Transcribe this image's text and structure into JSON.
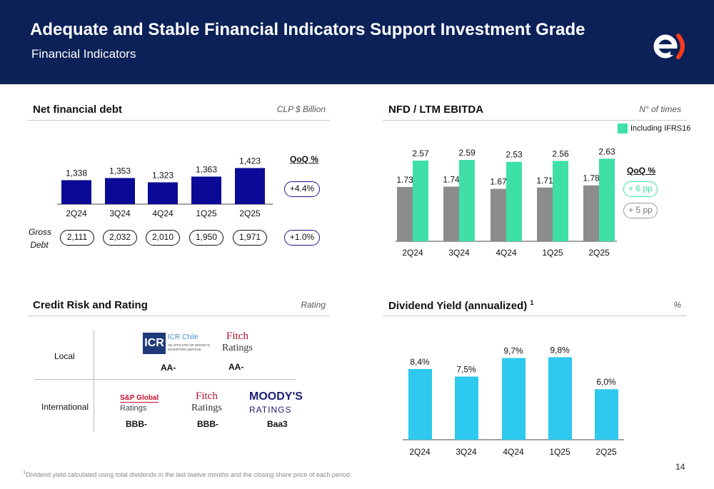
{
  "header": {
    "title": "Adequate and Stable Financial Indicators Support Investment Grade",
    "subtitle": "Financial Indicators"
  },
  "colors": {
    "header_bg": "#0b2158",
    "navy_bar": "#0a0a96",
    "grey_bar": "#8c8c8c",
    "green_bar": "#3ee0a8",
    "cyan_bar": "#2ec9ee",
    "logo_red": "#ff3a1c"
  },
  "net_debt": {
    "title": "Net financial debt",
    "unit": "CLP $ Billion",
    "qoq_label": "QoQ %",
    "qoq_net": "+4.4%",
    "gross_label_1": "Gross",
    "gross_label_2": "Debt",
    "gross_values": [
      "2,111",
      "2,032",
      "2,010",
      "1,950",
      "1,971"
    ],
    "qoq_gross": "+1.0%"
  },
  "nfd_ebitda": {
    "title": "NFD / LTM EBITDA",
    "unit": "N° of times",
    "legend": "Including IFRS16",
    "qoq_label": "QoQ %",
    "qoq_green": "+ 6 pp",
    "qoq_grey": "+ 5 pp"
  },
  "rating": {
    "title": "Credit Risk and Rating",
    "unit": "Rating",
    "local_label": "Local",
    "international_label": "International",
    "icr": {
      "mark": "ICR",
      "name": "ICR Chile",
      "sub1": "AN AFFILIATE OF MOODY'S",
      "sub2": "INVESTORS SERVICE",
      "grade": "AA-"
    },
    "fitch_local": {
      "line1": "Fitch",
      "line2": "Ratings",
      "grade": "AA-"
    },
    "sp": {
      "line1": "S&P Global",
      "line2": "Ratings",
      "grade": "BBB-"
    },
    "fitch_intl": {
      "line1": "Fitch",
      "line2": "Ratings",
      "grade": "BBB-"
    },
    "moodys": {
      "line1": "MOODY'S",
      "line2": "RATINGS",
      "grade": "Baa3"
    }
  },
  "dividend": {
    "title": "Dividend Yield (annualized)",
    "footnote_mark": "1",
    "unit": "%"
  },
  "footnote": {
    "mark": "1",
    "text": "Dividend yield calculated using total dividends in the last twelve months and the closing share price of each period."
  },
  "page_number": "14",
  "chart_data": [
    {
      "type": "bar",
      "categories": [
        "2Q24",
        "3Q24",
        "4Q24",
        "1Q25",
        "2Q25"
      ],
      "values": [
        1338,
        1353,
        1323,
        1363,
        1423
      ],
      "labels": [
        "1,338",
        "1,353",
        "1,323",
        "1,363",
        "1,423"
      ],
      "title": "Net financial debt",
      "ylabel": "CLP $ Billion"
    },
    {
      "type": "bar",
      "categories": [
        "2Q24",
        "3Q24",
        "4Q24",
        "1Q25",
        "2Q25"
      ],
      "series": [
        {
          "values": [
            1.73,
            1.74,
            1.67,
            1.71,
            1.78
          ],
          "labels": [
            "1.73",
            "1.74",
            "1.67",
            "1.71",
            "1.78"
          ]
        },
        {
          "name": "Including IFRS16",
          "values": [
            2.57,
            2.59,
            2.53,
            2.56,
            2.63
          ],
          "labels": [
            "2.57",
            "2.59",
            "2.53",
            "2.56",
            "2.63"
          ]
        }
      ],
      "title": "NFD / LTM EBITDA",
      "ylabel": "N° of times"
    },
    {
      "type": "bar",
      "categories": [
        "2Q24",
        "3Q24",
        "4Q24",
        "1Q25",
        "2Q25"
      ],
      "values": [
        8.4,
        7.5,
        9.7,
        9.8,
        6.0
      ],
      "labels": [
        "8,4%",
        "7,5%",
        "9,7%",
        "9,8%",
        "6,0%"
      ],
      "title": "Dividend Yield (annualized)",
      "ylabel": "%"
    }
  ]
}
